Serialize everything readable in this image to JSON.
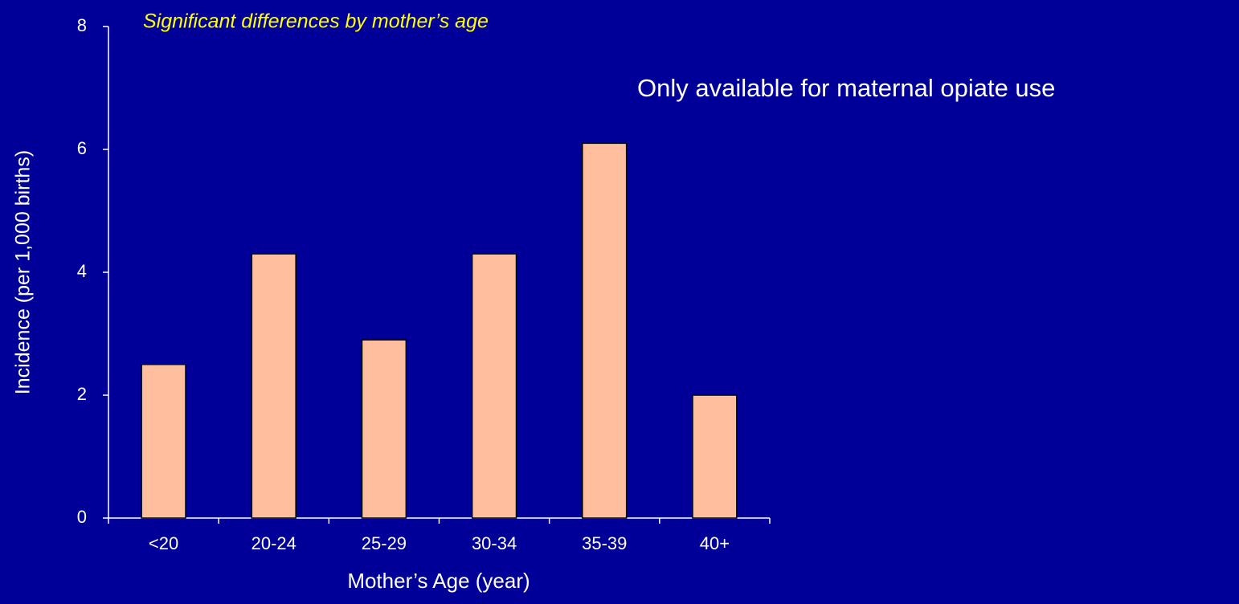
{
  "chart_data": {
    "type": "bar",
    "title": "Significant differences by mother’s age",
    "annotation": "Only available for maternal opiate use",
    "x_label": "Mother’s Age (year)",
    "y_label": "Incidence (per 1,000 births)",
    "categories": [
      "<20",
      "20-24",
      "25-29",
      "30-34",
      "35-39",
      "40+"
    ],
    "values": [
      2.5,
      4.3,
      2.9,
      4.3,
      6.1,
      2.0
    ],
    "color": "#ffbf9f",
    "ylim": [
      0,
      8
    ],
    "yticks": [
      0,
      2,
      4,
      6,
      8
    ],
    "grid": false
  }
}
